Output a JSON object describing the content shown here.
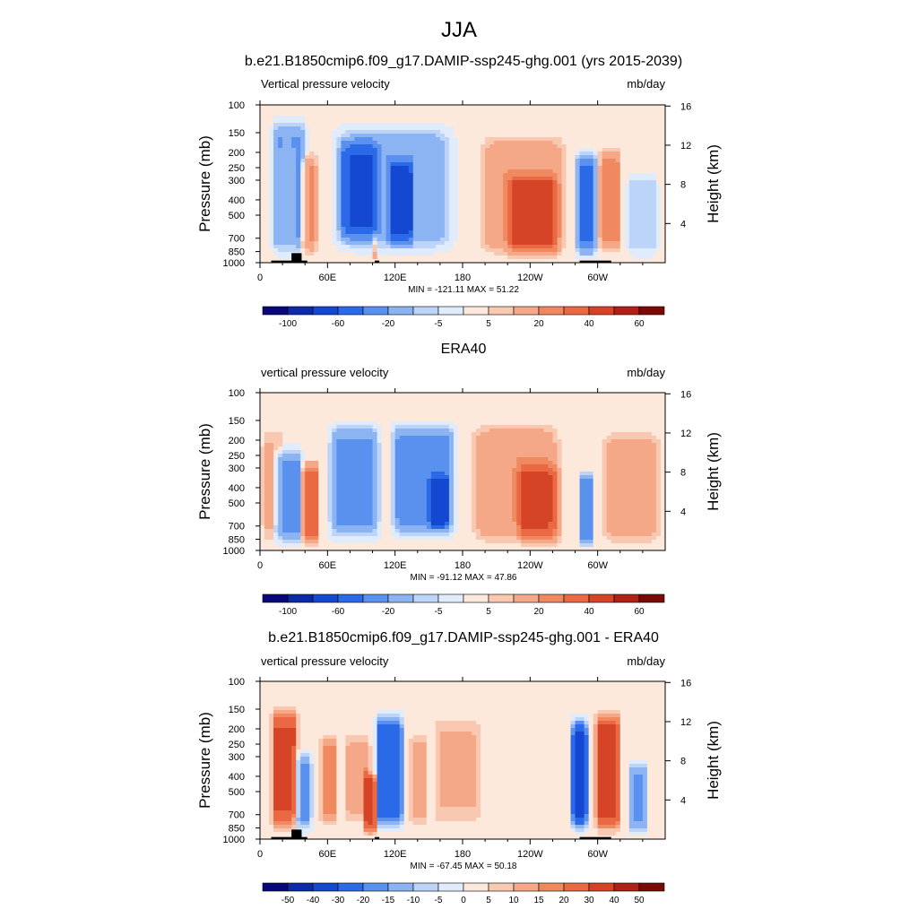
{
  "page": {
    "title": "JJA"
  },
  "colors": {
    "levels": [
      "#08087a",
      "#0a2aa8",
      "#1448d0",
      "#2a6ae8",
      "#5a90ee",
      "#8cb4f2",
      "#bcd4f8",
      "#e0ecfb",
      "#fde8dc",
      "#f8c8b0",
      "#f4a888",
      "#f08860",
      "#ea6842",
      "#d64428",
      "#b02014",
      "#7a0a06"
    ],
    "topography": "#000000"
  },
  "panels": [
    {
      "title": "b.e21.B1850cmip6.f09_g17.DAMIP-ssp245-ghg.001 (yrs 2015-2039)",
      "left_label": "Vertical pressure velocity",
      "right_label": "mb/day",
      "stats": "MIN = -121.11  MAX =  51.22",
      "colorbar_labels": [
        "-100",
        "-60",
        "-20",
        "-5",
        "5",
        "20",
        "40",
        "60"
      ],
      "has_topography": true
    },
    {
      "title": "ERA40",
      "left_label": "vertical pressure velocity",
      "right_label": "mb/day",
      "stats": "MIN = -91.12  MAX =  47.86",
      "colorbar_labels": [
        "-100",
        "-60",
        "-20",
        "-5",
        "5",
        "20",
        "40",
        "60"
      ],
      "has_topography": false
    },
    {
      "title": "b.e21.B1850cmip6.f09_g17.DAMIP-ssp245-ghg.001 - ERA40",
      "left_label": "vertical pressure velocity",
      "right_label": "mb/day",
      "stats": "MIN = -67.45  MAX =  50.18",
      "colorbar_labels": [
        "-50",
        "-40",
        "-30",
        "-20",
        "-15",
        "-10",
        "-5",
        "0",
        "5",
        "10",
        "15",
        "20",
        "30",
        "40",
        "50"
      ],
      "has_topography": true
    }
  ],
  "chart_data": [
    {
      "type": "heatmap",
      "title": "b.e21.B1850cmip6.f09_g17.DAMIP-ssp245-ghg.001 (yrs 2015-2039)",
      "subtitle_left": "Vertical pressure velocity",
      "units": "mb/day",
      "xlabel": "",
      "ylabel": "Pressure (mb)",
      "ylabel_right": "Height (km)",
      "x_ticks": [
        "0",
        "60E",
        "120E",
        "180",
        "120W",
        "60W"
      ],
      "xlim": [
        0,
        360
      ],
      "y_ticks": [
        "100",
        "150",
        "200",
        "250",
        "300",
        "400",
        "500",
        "700",
        "850",
        "1000"
      ],
      "ylim": [
        1000,
        100
      ],
      "y_scale": "log",
      "y_right_ticks": [
        "4",
        "8",
        "12",
        "16"
      ],
      "contour_levels": [
        -100,
        -80,
        -60,
        -40,
        -20,
        -10,
        -5,
        -2,
        2,
        5,
        10,
        20,
        30,
        40,
        50,
        60
      ],
      "min": -121.11,
      "max": 51.22,
      "features": [
        {
          "lon": [
            8,
            44
          ],
          "p": [
            110,
            1000
          ],
          "value": -25
        },
        {
          "lon": [
            16,
            32
          ],
          "p": [
            150,
            850
          ],
          "value": 10
        },
        {
          "lon": [
            34,
            52
          ],
          "p": [
            180,
            1000
          ],
          "value": 20
        },
        {
          "lon": [
            58,
            180
          ],
          "p": [
            120,
            950
          ],
          "value": -20
        },
        {
          "lon": [
            68,
            108
          ],
          "p": [
            150,
            800
          ],
          "value": -45
        },
        {
          "lon": [
            112,
            138
          ],
          "p": [
            200,
            850
          ],
          "value": -55
        },
        {
          "lon": [
            99,
            104
          ],
          "p": [
            600,
            1000
          ],
          "value": 12
        },
        {
          "lon": [
            190,
            278
          ],
          "p": [
            140,
            1000
          ],
          "value": 18
        },
        {
          "lon": [
            215,
            270
          ],
          "p": [
            250,
            1000
          ],
          "value": 30
        },
        {
          "lon": [
            280,
            300
          ],
          "p": [
            180,
            1000
          ],
          "value": -45
        },
        {
          "lon": [
            300,
            322
          ],
          "p": [
            170,
            950
          ],
          "value": 25
        },
        {
          "lon": [
            324,
            356
          ],
          "p": [
            250,
            1000
          ],
          "value": -10
        }
      ]
    },
    {
      "type": "heatmap",
      "title": "ERA40",
      "subtitle_left": "vertical pressure velocity",
      "units": "mb/day",
      "xlabel": "",
      "ylabel": "Pressure (mb)",
      "ylabel_right": "Height (km)",
      "x_ticks": [
        "0",
        "60E",
        "120E",
        "180",
        "120W",
        "60W"
      ],
      "xlim": [
        0,
        360
      ],
      "y_ticks": [
        "100",
        "150",
        "200",
        "250",
        "300",
        "400",
        "500",
        "700",
        "850",
        "1000"
      ],
      "ylim": [
        1000,
        100
      ],
      "y_scale": "log",
      "y_right_ticks": [
        "4",
        "8",
        "12",
        "16"
      ],
      "contour_levels": [
        -100,
        -80,
        -60,
        -40,
        -20,
        -10,
        -5,
        -2,
        2,
        5,
        10,
        20,
        30,
        40,
        50,
        60
      ],
      "min": -91.12,
      "max": 47.86,
      "features": [
        {
          "lon": [
            0,
            22
          ],
          "p": [
            150,
            1000
          ],
          "value": 10
        },
        {
          "lon": [
            10,
            40
          ],
          "p": [
            200,
            1000
          ],
          "value": -25
        },
        {
          "lon": [
            36,
            54
          ],
          "p": [
            250,
            1000
          ],
          "value": 35
        },
        {
          "lon": [
            58,
            110
          ],
          "p": [
            140,
            950
          ],
          "value": -25
        },
        {
          "lon": [
            112,
            178
          ],
          "p": [
            140,
            900
          ],
          "value": -30
        },
        {
          "lon": [
            148,
            170
          ],
          "p": [
            300,
            800
          ],
          "value": -45
        },
        {
          "lon": [
            182,
            272
          ],
          "p": [
            140,
            1000
          ],
          "value": 18
        },
        {
          "lon": [
            225,
            270
          ],
          "p": [
            250,
            1000
          ],
          "value": 25
        },
        {
          "lon": [
            282,
            298
          ],
          "p": [
            300,
            1000
          ],
          "value": -40
        },
        {
          "lon": [
            300,
            360
          ],
          "p": [
            160,
            1000
          ],
          "value": 15
        }
      ]
    },
    {
      "type": "heatmap",
      "title": "b.e21.B1850cmip6.f09_g17.DAMIP-ssp245-ghg.001 - ERA40",
      "subtitle_left": "vertical pressure velocity",
      "units": "mb/day",
      "xlabel": "",
      "ylabel": "Pressure (mb)",
      "ylabel_right": "Height (km)",
      "x_ticks": [
        "0",
        "60E",
        "120E",
        "180",
        "120W",
        "60W"
      ],
      "xlim": [
        0,
        360
      ],
      "y_ticks": [
        "100",
        "150",
        "200",
        "250",
        "300",
        "400",
        "500",
        "700",
        "850",
        "1000"
      ],
      "ylim": [
        1000,
        100
      ],
      "y_scale": "log",
      "y_right_ticks": [
        "4",
        "8",
        "12",
        "16"
      ],
      "contour_levels": [
        -50,
        -40,
        -30,
        -20,
        -15,
        -10,
        -5,
        -2,
        2,
        5,
        10,
        15,
        20,
        30,
        40,
        50
      ],
      "min": -67.45,
      "max": 50.18,
      "features": [
        {
          "lon": [
            8,
            36
          ],
          "p": [
            130,
            1000
          ],
          "value": 28
        },
        {
          "lon": [
            28,
            48
          ],
          "p": [
            250,
            1000
          ],
          "value": -18
        },
        {
          "lon": [
            52,
            70
          ],
          "p": [
            200,
            900
          ],
          "value": 15
        },
        {
          "lon": [
            74,
            100
          ],
          "p": [
            200,
            850
          ],
          "value": 12
        },
        {
          "lon": [
            92,
            104
          ],
          "p": [
            350,
            1000
          ],
          "value": 30
        },
        {
          "lon": [
            100,
            130
          ],
          "p": [
            140,
            1000
          ],
          "value": -30
        },
        {
          "lon": [
            132,
            150
          ],
          "p": [
            200,
            900
          ],
          "value": 12
        },
        {
          "lon": [
            150,
            200
          ],
          "p": [
            150,
            900
          ],
          "value": 8
        },
        {
          "lon": [
            276,
            292
          ],
          "p": [
            150,
            1000
          ],
          "value": -40
        },
        {
          "lon": [
            296,
            322
          ],
          "p": [
            140,
            1000
          ],
          "value": 35
        },
        {
          "lon": [
            326,
            346
          ],
          "p": [
            300,
            1000
          ],
          "value": -18
        }
      ]
    }
  ]
}
